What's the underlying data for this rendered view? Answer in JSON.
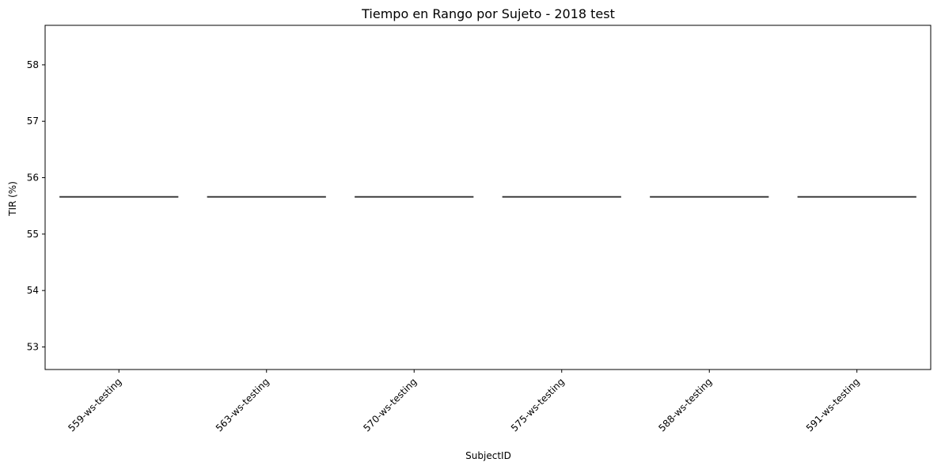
{
  "chart_data": {
    "type": "box",
    "title": "Tiempo en Rango por Sujeto - 2018 test",
    "xlabel": "SubjectID",
    "ylabel": "TIR (%)",
    "categories": [
      "559-ws-testing",
      "563-ws-testing",
      "570-ws-testing",
      "575-ws-testing",
      "588-ws-testing",
      "591-ws-testing"
    ],
    "values": [
      55.66,
      55.66,
      55.66,
      55.66,
      55.66,
      55.66
    ],
    "ylim": [
      52.6,
      58.7
    ],
    "yticks": [
      53,
      54,
      55,
      56,
      57,
      58
    ],
    "grid": false,
    "colors": {
      "axis": "#000000",
      "box_line": "#3f3f3f",
      "box_fill": "#4c72b0"
    }
  }
}
